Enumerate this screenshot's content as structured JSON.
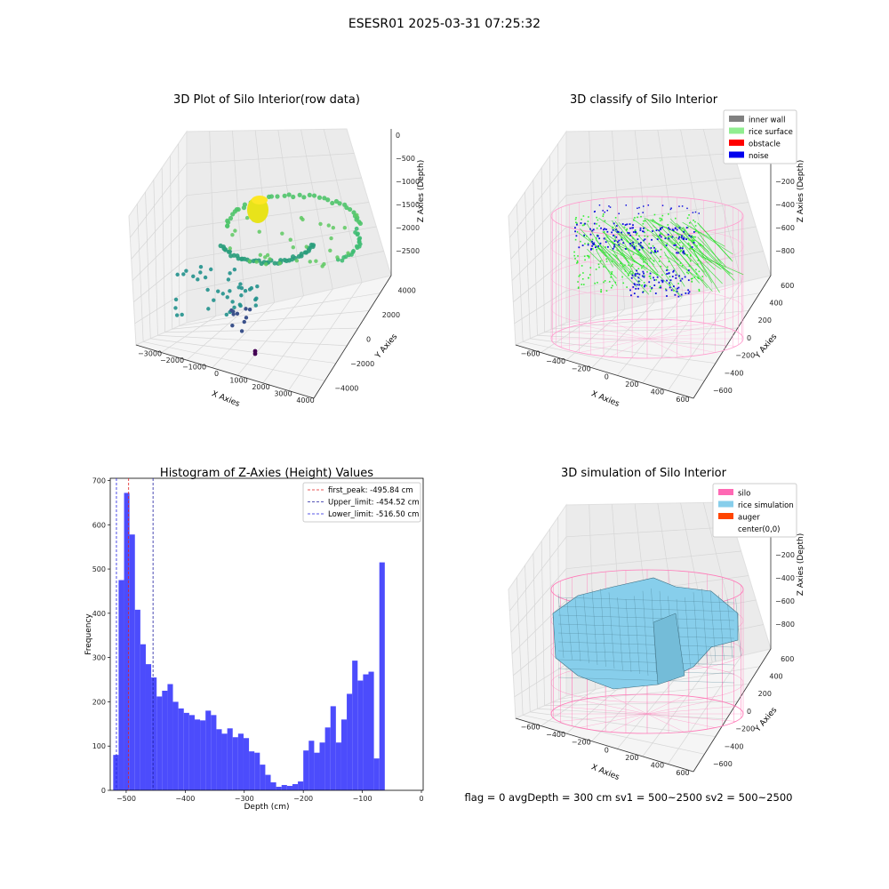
{
  "suptitle": "ESESR01 2025-03-31 07:25:32",
  "status_line": "flag = 0     avgDepth = 300 cm  sv1 = 500~2500  sv2 = 500~2500",
  "chart_data": [
    {
      "type": "scatter3d",
      "title": "3D Plot of Silo Interior(row data)",
      "xlabel": "X Axies",
      "ylabel": "Y Axies",
      "zlabel": "Z Axies (Depth)",
      "x_ticks": [
        "−3000",
        "−2000",
        "−1000",
        "0",
        "1000",
        "2000",
        "3000",
        "4000"
      ],
      "y_ticks": [
        "−4000",
        "−2000",
        "0",
        "2000",
        "4000"
      ],
      "z_ticks": [
        "0",
        "−500",
        "−1000",
        "−1500",
        "−2000",
        "−2500"
      ],
      "colormap": "viridis"
    },
    {
      "type": "scatter3d",
      "title": "3D classify of Silo Interior",
      "xlabel": "X Axies",
      "ylabel": "Y Axies",
      "zlabel": "Z Axies (Depth)",
      "x_ticks": [
        "−600",
        "−400",
        "−200",
        "0",
        "200",
        "400",
        "600"
      ],
      "y_ticks": [
        "−600",
        "−400",
        "−200",
        "0",
        "200",
        "400",
        "600"
      ],
      "z_ticks": [
        "200",
        "0",
        "−200",
        "−400",
        "−600",
        "−800"
      ],
      "legend": [
        {
          "label": "inner wall",
          "color": "#808080"
        },
        {
          "label": "rice surface",
          "color": "#90ee90"
        },
        {
          "label": "obstacle",
          "color": "#ff0000"
        },
        {
          "label": "noise",
          "color": "#0000ee"
        }
      ],
      "legend_position": "top-right"
    },
    {
      "type": "bar",
      "title": "Histogram of Z-Axies (Height) Values",
      "xlabel": "Depth (cm)",
      "ylabel": "Frequency",
      "xlim": [
        -527,
        3
      ],
      "ylim": [
        0,
        705
      ],
      "bin_start": -522,
      "bin_width": 9.2,
      "values": [
        80,
        475,
        672,
        578,
        408,
        330,
        285,
        255,
        212,
        225,
        240,
        200,
        185,
        175,
        170,
        160,
        158,
        180,
        170,
        138,
        128,
        140,
        120,
        128,
        118,
        88,
        85,
        58,
        35,
        18,
        8,
        12,
        10,
        14,
        20,
        90,
        112,
        85,
        108,
        142,
        190,
        108,
        160,
        218,
        293,
        248,
        262,
        268,
        72,
        515
      ],
      "x_ticks": [
        -500,
        -400,
        -300,
        -200,
        -100,
        0
      ],
      "y_ticks": [
        0,
        100,
        200,
        300,
        400,
        500,
        600,
        700
      ],
      "bar_color": "#4c4cfc",
      "lines": [
        {
          "label": "first_peak: -495.84 cm",
          "x": -495.84,
          "color": "#e02020"
        },
        {
          "label": "Upper_limit: -454.52 cm",
          "x": -454.52,
          "color": "#2020a0"
        },
        {
          "label": "Lower_limit: -516.50 cm",
          "x": -516.5,
          "color": "#2020e0"
        }
      ],
      "legend_position": "top-right"
    },
    {
      "type": "surface3d",
      "title": "3D simulation of Silo Interior",
      "xlabel": "X Axies",
      "ylabel": "Y Axies",
      "zlabel": "Z Axies (Depth)",
      "x_ticks": [
        "−600",
        "−400",
        "−200",
        "0",
        "200",
        "400",
        "600"
      ],
      "y_ticks": [
        "−600",
        "−400",
        "−200",
        "0",
        "200",
        "400",
        "600"
      ],
      "z_ticks": [
        "200",
        "0",
        "−200",
        "−400",
        "−600",
        "−800"
      ],
      "legend": [
        {
          "label": "silo",
          "color": "#ff69b4"
        },
        {
          "label": "rice simulation",
          "color": "#87ceeb"
        },
        {
          "label": "auger",
          "color": "#ff4500"
        },
        {
          "label": "center(0,0)",
          "color": "#ffffff"
        }
      ],
      "legend_position": "top-right"
    }
  ]
}
